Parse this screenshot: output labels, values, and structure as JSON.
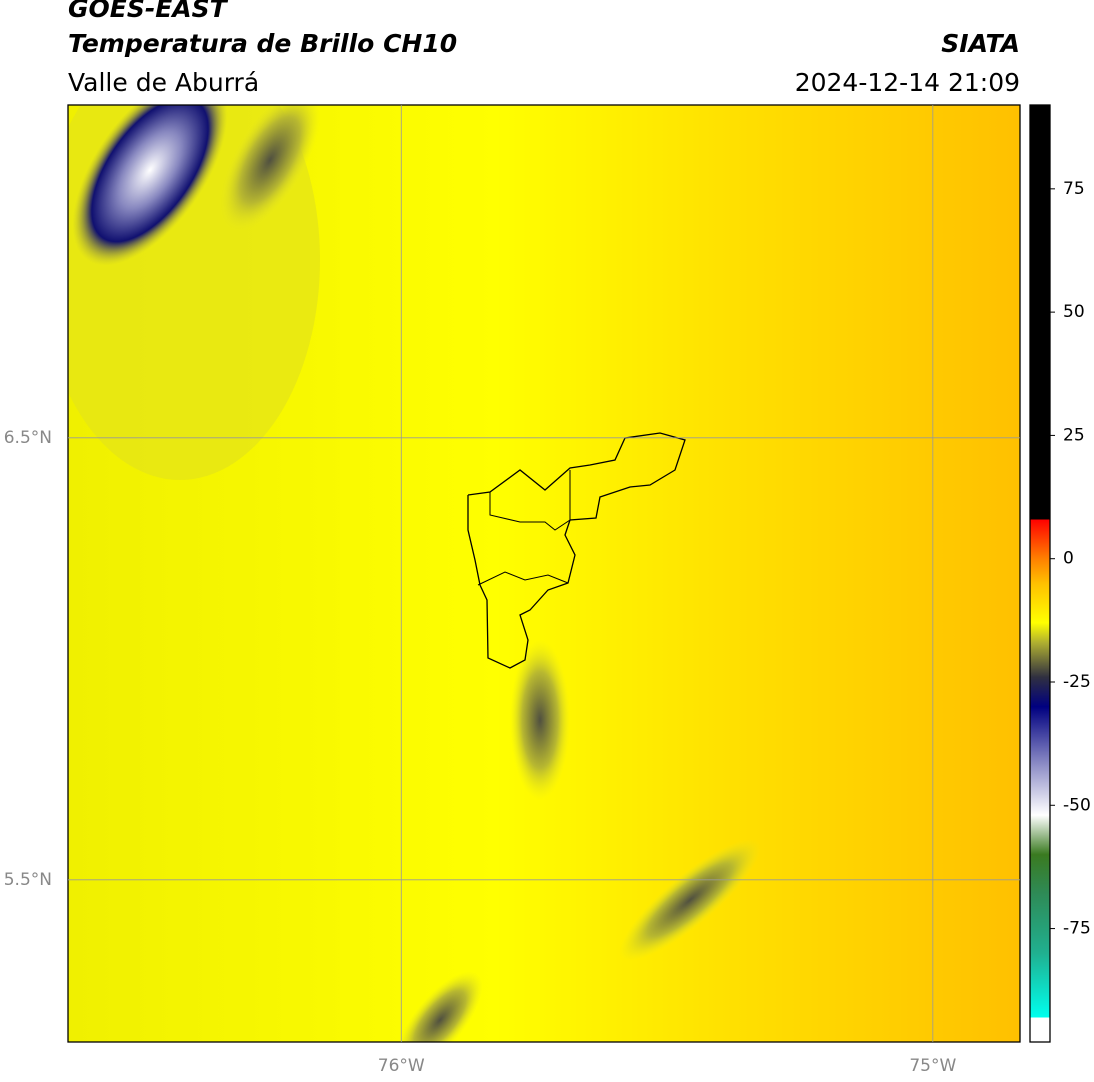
{
  "chart_data": {
    "type": "map",
    "title": "GOES-EAST",
    "subtitle": "Temperatura de Brillo CH10",
    "region": "Valle de Aburrá",
    "source": "SIATA",
    "datetime": "2024-12-14 21:09",
    "xlim": [
      -76.627,
      -74.836
    ],
    "ylim": [
      5.133,
      7.253
    ],
    "xticks": [
      {
        "value": -76,
        "label": "76°W"
      },
      {
        "value": -75,
        "label": "75°W"
      }
    ],
    "yticks": [
      {
        "value": 6.5,
        "label": "6.5°N"
      },
      {
        "value": 5.5,
        "label": "5.5°N"
      }
    ],
    "grid": true,
    "colorbar": {
      "lim": [
        -98,
        92
      ],
      "ticks": [
        -75,
        -50,
        -25,
        0,
        25,
        50,
        75
      ],
      "colormap": [
        {
          "value": -98,
          "color": "#ffffff"
        },
        {
          "value": -93,
          "color": "#ffffff"
        },
        {
          "value": -93,
          "color": "#00ffee"
        },
        {
          "value": -80,
          "color": "#20b090"
        },
        {
          "value": -68,
          "color": "#2e8b57"
        },
        {
          "value": -60,
          "color": "#3a7a20"
        },
        {
          "value": -52,
          "color": "#ffffff"
        },
        {
          "value": -42,
          "color": "#9090c8"
        },
        {
          "value": -30,
          "color": "#000080"
        },
        {
          "value": -24,
          "color": "#303040"
        },
        {
          "value": -17,
          "color": "#b0b030"
        },
        {
          "value": -13,
          "color": "#ffff00"
        },
        {
          "value": -5,
          "color": "#ffc000"
        },
        {
          "value": 0,
          "color": "#ff8000"
        },
        {
          "value": 8,
          "color": "#ff0000"
        },
        {
          "value": 8,
          "color": "#000000"
        },
        {
          "value": 92,
          "color": "#000000"
        }
      ]
    }
  }
}
